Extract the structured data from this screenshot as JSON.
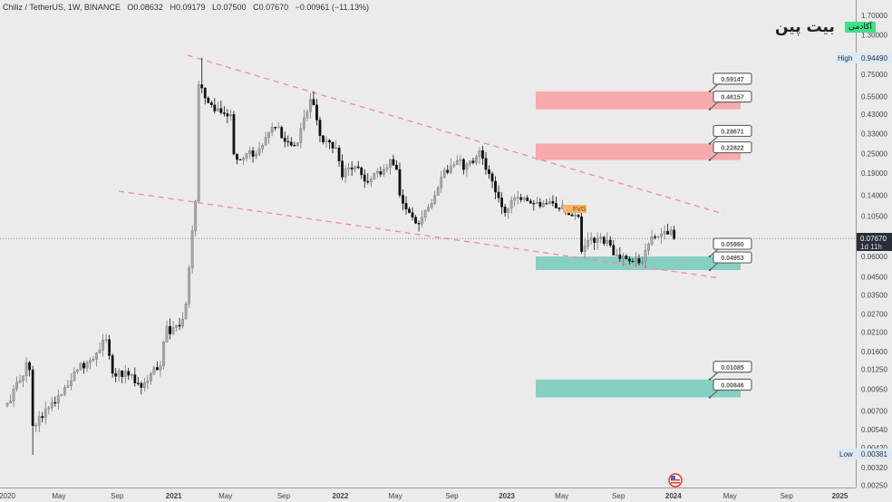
{
  "header": {
    "symbol": "Chiliz / TetherUS, 1W, BINANCE",
    "open": "O0.08632",
    "high": "H0.09179",
    "low": "L0.07500",
    "close": "C0.07670",
    "change": "−0.00961 (−11.13%)"
  },
  "logo": {
    "main": "بیت پین",
    "tag": "آکادمی"
  },
  "colors": {
    "background": "#ebebeb",
    "up": "#a8a8a8",
    "down": "#111111",
    "supply": "#f7a9ae",
    "demand": "#86cfc3",
    "trendline": "#f48a96",
    "logo_tag": "#3ee08a"
  },
  "axis": {
    "high_label": "High",
    "high_value": "0.94490",
    "low_label": "Low",
    "low_value": "0.00381",
    "current_price": "0.07670",
    "countdown": "1d 11h",
    "flag_icon": "us-flag-icon"
  },
  "fvg_label": "FVG",
  "chart_data": {
    "type": "candlestick",
    "title": "Chiliz / TetherUS, 1W, BINANCE",
    "yscale": "log",
    "ylim": [
      0.0023,
      2.0
    ],
    "y_ticks": [
      "1.70000",
      "1.30000",
      "0.75000",
      "0.55000",
      "0.43000",
      "0.33000",
      "0.25000",
      "0.19000",
      "0.14000",
      "0.10500",
      "0.06000",
      "0.04500",
      "0.03500",
      "0.02700",
      "0.02100",
      "0.01600",
      "0.01250",
      "0.00950",
      "0.00700",
      "0.00540",
      "0.00420",
      "0.00320",
      "0.00250"
    ],
    "x_ticks": [
      {
        "label": "2020",
        "year": 2020.0,
        "bold": false
      },
      {
        "label": "May",
        "year": 2020.31
      },
      {
        "label": "Sep",
        "year": 2020.66
      },
      {
        "label": "2021",
        "year": 2021.0,
        "bold": true
      },
      {
        "label": "May",
        "year": 2021.31
      },
      {
        "label": "Sep",
        "year": 2021.66
      },
      {
        "label": "2022",
        "year": 2022.0,
        "bold": true
      },
      {
        "label": "May",
        "year": 2022.33
      },
      {
        "label": "Sep",
        "year": 2022.67
      },
      {
        "label": "2023",
        "year": 2023.0,
        "bold": true
      },
      {
        "label": "May",
        "year": 2023.33
      },
      {
        "label": "Sep",
        "year": 2023.67
      },
      {
        "label": "2024",
        "year": 2024.0,
        "bold": true
      },
      {
        "label": "May",
        "year": 2024.34
      },
      {
        "label": "Sep",
        "year": 2024.68
      },
      {
        "label": "2025",
        "year": 2025.0,
        "bold": true
      }
    ],
    "weekly_close_keypoints": [
      [
        0,
        0.0078
      ],
      [
        4,
        0.0107
      ],
      [
        6,
        0.0137
      ],
      [
        7,
        0.0124
      ],
      [
        8,
        0.0057
      ],
      [
        10,
        0.0065
      ],
      [
        15,
        0.0078
      ],
      [
        18,
        0.0097
      ],
      [
        22,
        0.0124
      ],
      [
        25,
        0.0137
      ],
      [
        31,
        0.0189
      ],
      [
        32,
        0.0151
      ],
      [
        33,
        0.0118
      ],
      [
        38,
        0.0115
      ],
      [
        42,
        0.0097
      ],
      [
        45,
        0.0118
      ],
      [
        48,
        0.0131
      ],
      [
        50,
        0.0227
      ],
      [
        51,
        0.0204
      ],
      [
        54,
        0.0227
      ],
      [
        56,
        0.031
      ],
      [
        57,
        0.051
      ],
      [
        59,
        0.129
      ],
      [
        60,
        0.65
      ],
      [
        62,
        0.54
      ],
      [
        64,
        0.49
      ],
      [
        67,
        0.44
      ],
      [
        69,
        0.42
      ],
      [
        70,
        0.43
      ],
      [
        71,
        0.248
      ],
      [
        72,
        0.23
      ],
      [
        75,
        0.25
      ],
      [
        77,
        0.24
      ],
      [
        80,
        0.28
      ],
      [
        83,
        0.36
      ],
      [
        85,
        0.36
      ],
      [
        86,
        0.31
      ],
      [
        89,
        0.28
      ],
      [
        91,
        0.29
      ],
      [
        93,
        0.41
      ],
      [
        95,
        0.53
      ],
      [
        96,
        0.49
      ],
      [
        98,
        0.32
      ],
      [
        100,
        0.3
      ],
      [
        103,
        0.27
      ],
      [
        105,
        0.18
      ],
      [
        107,
        0.205
      ],
      [
        110,
        0.205
      ],
      [
        112,
        0.17
      ],
      [
        115,
        0.19
      ],
      [
        118,
        0.2
      ],
      [
        120,
        0.23
      ],
      [
        122,
        0.2
      ],
      [
        123,
        0.14
      ],
      [
        126,
        0.11
      ],
      [
        128,
        0.095
      ],
      [
        130,
        0.103
      ],
      [
        133,
        0.125
      ],
      [
        136,
        0.18
      ],
      [
        139,
        0.21
      ],
      [
        142,
        0.23
      ],
      [
        143,
        0.2
      ],
      [
        146,
        0.22
      ],
      [
        148,
        0.26
      ],
      [
        150,
        0.2
      ],
      [
        152,
        0.17
      ],
      [
        154,
        0.135
      ],
      [
        156,
        0.11
      ],
      [
        159,
        0.135
      ],
      [
        162,
        0.135
      ],
      [
        165,
        0.125
      ],
      [
        168,
        0.125
      ],
      [
        171,
        0.125
      ],
      [
        174,
        0.122
      ],
      [
        175,
        0.11
      ],
      [
        177,
        0.105
      ],
      [
        179,
        0.104
      ],
      [
        180,
        0.064
      ],
      [
        182,
        0.075
      ],
      [
        185,
        0.077
      ],
      [
        188,
        0.075
      ],
      [
        190,
        0.061
      ],
      [
        192,
        0.058
      ],
      [
        195,
        0.056
      ],
      [
        197,
        0.058
      ],
      [
        199,
        0.056
      ],
      [
        201,
        0.071
      ],
      [
        203,
        0.078
      ],
      [
        206,
        0.085
      ],
      [
        208,
        0.0863
      ],
      [
        209,
        0.0767
      ]
    ],
    "last_candle": {
      "open": 0.08632,
      "high": 0.09179,
      "low": 0.075,
      "close": 0.0767
    },
    "all_time_high": 0.9449,
    "all_time_low": 0.00381,
    "zones": [
      {
        "type": "supply",
        "top": "0.59147",
        "bottom": "0.46157"
      },
      {
        "type": "supply",
        "top": "0.28671",
        "bottom": "0.22822"
      },
      {
        "type": "demand",
        "top": "0.05980",
        "bottom": "0.04953"
      },
      {
        "type": "demand",
        "top": "0.01085",
        "bottom": "0.00846"
      }
    ]
  }
}
